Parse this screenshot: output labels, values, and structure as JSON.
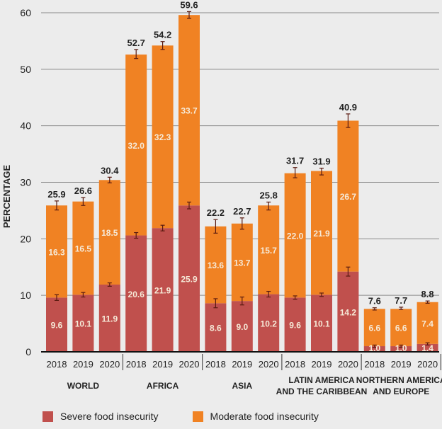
{
  "chart_data": {
    "type": "bar",
    "stacked": true,
    "title": "",
    "xlabel": "",
    "ylabel": "PERCENTAGE",
    "ylim": [
      0,
      60
    ],
    "yticks": [
      0,
      10,
      20,
      30,
      40,
      50,
      60
    ],
    "grid": true,
    "legend_position": "bottom-left",
    "groups": [
      {
        "name": "WORLD",
        "lines": [
          "WORLD"
        ]
      },
      {
        "name": "AFRICA",
        "lines": [
          "AFRICA"
        ]
      },
      {
        "name": "ASIA",
        "lines": [
          "ASIA"
        ]
      },
      {
        "name": "LATIN AMERICA AND THE CARIBBEAN",
        "lines": [
          "LATIN AMERICA",
          "AND THE CARIBBEAN"
        ]
      },
      {
        "name": "NORTHERN AMERICA AND EUROPE",
        "lines": [
          "NORTHERN AMERICA",
          "AND EUROPE"
        ]
      }
    ],
    "years": [
      "2018",
      "2019",
      "2020"
    ],
    "categories": [
      "WORLD 2018",
      "WORLD 2019",
      "WORLD 2020",
      "AFRICA 2018",
      "AFRICA 2019",
      "AFRICA 2020",
      "ASIA 2018",
      "ASIA 2019",
      "ASIA 2020",
      "LATIN AMERICA AND THE CARIBBEAN 2018",
      "LATIN AMERICA AND THE CARIBBEAN 2019",
      "LATIN AMERICA AND THE CARIBBEAN 2020",
      "NORTHERN AMERICA AND EUROPE 2018",
      "NORTHERN AMERICA AND EUROPE 2019",
      "NORTHERN AMERICA AND EUROPE 2020"
    ],
    "series": [
      {
        "name": "Severe food insecurity",
        "color": "#c0504d",
        "values": [
          9.6,
          10.1,
          11.9,
          20.6,
          21.9,
          25.9,
          8.6,
          9.0,
          10.2,
          9.6,
          10.1,
          14.2,
          1.0,
          1.0,
          1.4
        ],
        "error_halfwidth": [
          0.5,
          0.4,
          0.3,
          0.5,
          0.5,
          0.6,
          0.8,
          0.7,
          0.5,
          0.3,
          0.3,
          0.8,
          0.2,
          0.2,
          0.2
        ]
      },
      {
        "name": "Moderate food insecurity",
        "color": "#f08223",
        "values": [
          16.3,
          16.5,
          18.5,
          32.0,
          32.3,
          33.7,
          13.6,
          13.7,
          15.7,
          22.0,
          21.9,
          26.7,
          6.6,
          6.6,
          7.4
        ]
      }
    ],
    "totals": [
      25.9,
      26.6,
      30.4,
      52.7,
      54.2,
      59.6,
      22.2,
      22.7,
      25.8,
      31.7,
      31.9,
      40.9,
      7.6,
      7.7,
      8.8
    ],
    "total_error_halfwidth": [
      0.8,
      0.7,
      0.5,
      0.8,
      0.7,
      0.6,
      1.2,
      1.0,
      0.7,
      0.9,
      0.6,
      1.2,
      0.2,
      0.2,
      0.2
    ]
  },
  "legend": [
    {
      "label": "Severe food insecurity",
      "color": "#c0504d"
    },
    {
      "label": "Moderate food insecurity",
      "color": "#f08223"
    }
  ]
}
